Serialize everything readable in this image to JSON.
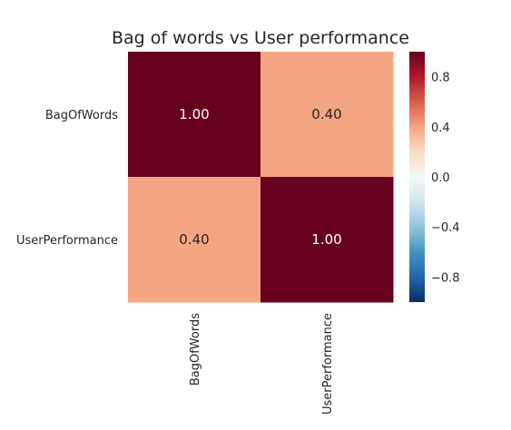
{
  "chart_data": {
    "type": "heatmap",
    "title": "Bag of words vs User performance",
    "xlabel": "",
    "ylabel": "",
    "x_categories": [
      "BagOfWords",
      "UserPerformance"
    ],
    "y_categories": [
      "BagOfWords",
      "UserPerformance"
    ],
    "values": [
      [
        1.0,
        0.4
      ],
      [
        0.4,
        1.0
      ]
    ],
    "value_labels": [
      [
        "1.00",
        "0.40"
      ],
      [
        "0.40",
        "1.00"
      ]
    ],
    "colorbar": {
      "vmin": -1.0,
      "vmax": 1.0,
      "ticks": [
        0.8,
        0.4,
        0.0,
        -0.4,
        -0.8
      ],
      "tick_labels": [
        "0.8",
        "0.4",
        "0.0",
        "−0.4",
        "−0.8"
      ],
      "colormap": "RdBu_r",
      "stops": [
        "#053061",
        "#2166ac",
        "#4393c3",
        "#92c5de",
        "#d1e5f0",
        "#f7f7f7",
        "#fddbc7",
        "#f4a582",
        "#d6604d",
        "#b2182b",
        "#67001f"
      ]
    },
    "grid": false,
    "legend": "colorbar-right"
  }
}
